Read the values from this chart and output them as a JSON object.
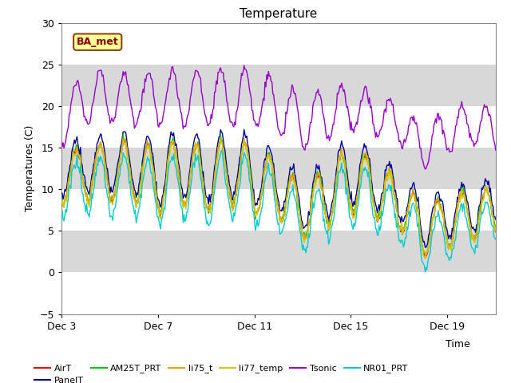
{
  "title": "Temperature",
  "ylabel": "Temperatures (C)",
  "xlabel": "Time",
  "ylim": [
    -5,
    30
  ],
  "yticks": [
    -5,
    0,
    5,
    10,
    15,
    20,
    25,
    30
  ],
  "background_color": "#ffffff",
  "plot_bg_color": "#ebebeb",
  "annotation_text": "BA_met",
  "legend_entries": [
    "AirT",
    "PanelT",
    "AM25T_PRT",
    "li75_t",
    "li77_temp",
    "Tsonic",
    "NR01_PRT"
  ],
  "legend_colors": [
    "#ff0000",
    "#000099",
    "#00cc00",
    "#ff9900",
    "#cccc00",
    "#9900cc",
    "#00cccc"
  ],
  "line_width": 1.0,
  "xtick_labels": [
    "Dec 3",
    "Dec 7",
    "Dec 11",
    "Dec 15",
    "Dec 19"
  ],
  "xtick_positions": [
    0,
    4,
    8,
    12,
    16
  ]
}
